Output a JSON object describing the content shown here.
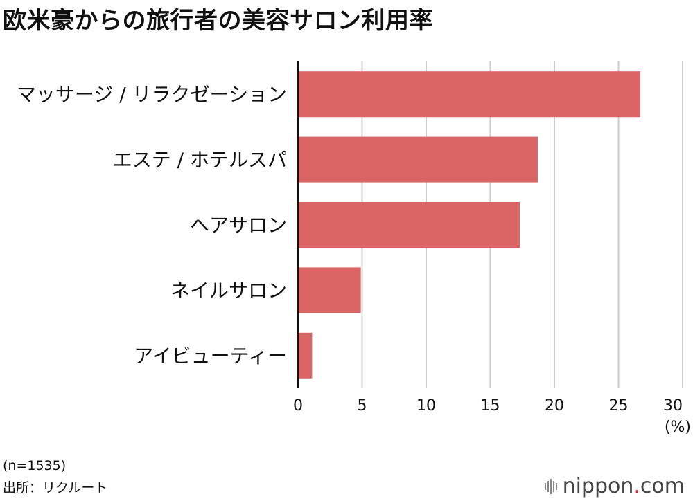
{
  "title": "欧米豪からの旅行者の美容サロン利用率",
  "footer": {
    "n_note": "(n=1535)",
    "source": "出所：リクルート"
  },
  "logo": {
    "name": "nippon",
    "dot": ".",
    "suffix": "com"
  },
  "colors": {
    "bar": "#d96565",
    "grid": "#cccccc",
    "axis": "#111111"
  },
  "chart_data": {
    "type": "bar",
    "orientation": "horizontal",
    "categories": [
      "マッサージ / リラクゼーション",
      "エステ / ホテルスパ",
      "ヘアサロン",
      "ネイルサロン",
      "アイビューティー"
    ],
    "values": [
      26.7,
      18.7,
      17.3,
      4.9,
      1.1
    ],
    "xlim": [
      0,
      30
    ],
    "ticks": [
      0,
      5,
      10,
      15,
      20,
      25,
      30
    ],
    "unit_label": "(%)",
    "grid": true,
    "legend": "none"
  }
}
